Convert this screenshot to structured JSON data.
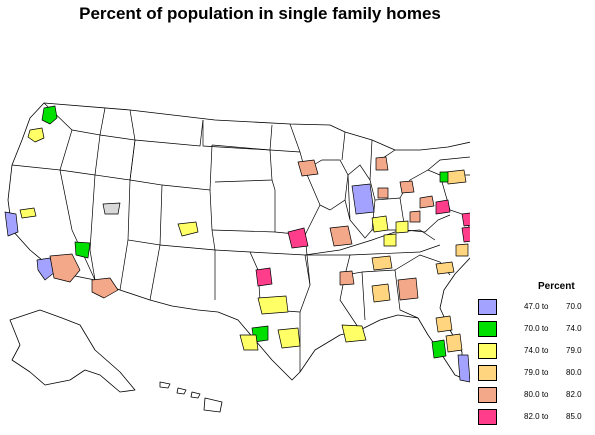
{
  "title": "Percent of population in single family homes",
  "legend": {
    "title": "Percent",
    "classes": [
      {
        "from": "47.0",
        "to": "70.0",
        "color": "#a3a3ff"
      },
      {
        "from": "70.0",
        "to": "74.0",
        "color": "#00e000"
      },
      {
        "from": "74.0",
        "to": "79.0",
        "color": "#ffff66"
      },
      {
        "from": "79.0",
        "to": "80.0",
        "color": "#ffd580"
      },
      {
        "from": "80.0",
        "to": "82.0",
        "color": "#f4a88a"
      },
      {
        "from": "82.0",
        "to": "85.0",
        "color": "#ff3d8b"
      }
    ],
    "word_to": "to"
  },
  "map": {
    "base": "United States states outline (incl. Alaska and Hawaii insets)",
    "metro_colors": {
      "seattle": "#00e000",
      "portland": "#ffff66",
      "sacramento": "#ffff66",
      "san-francisco": "#a3a3ff",
      "los-angeles": "#a3a3ff",
      "san-diego": "#a3a3ff",
      "las-vegas": "#00e000",
      "phoenix": "#f4a88a",
      "tucson": "#f4a88a",
      "salt-lake-city": "#d8d8d8",
      "denver": "#ffff66",
      "kansas-city": "#ff3d8b",
      "oklahoma-city": "#ff3d8b",
      "dallas": "#ffff66",
      "austin": "#00e000",
      "san-antonio": "#ffff66",
      "houston": "#ffff66",
      "new-orleans": "#ffff66",
      "minneapolis": "#f4a88a",
      "milwaukee": "#f4a88a",
      "chicago": "#a3a3ff",
      "st-louis": "#f4a88a",
      "detroit": "#f4a88a",
      "grand-rapids": "#f4a88a",
      "indianapolis": "#ffff66",
      "louisville": "#ffff66",
      "cincinnati": "#ffff66",
      "columbus": "#f4a88a",
      "cleveland": "#f4a88a",
      "pittsburgh": "#ff3d8b",
      "memphis": "#f4a88a",
      "nashville": "#ffd580",
      "birmingham": "#ffd580",
      "atlanta": "#f4a88a",
      "charlotte": "#ffd580",
      "raleigh": "#ffd580",
      "richmond": "#ffd580",
      "washington": "#ff3d8b",
      "baltimore": "#ff3d8b",
      "philadelphia": "#ff3d8b",
      "new-york": "#a3a3ff",
      "hartford": "#00e000",
      "providence": "#a3a3ff",
      "boston": "#a3a3ff",
      "buffalo": "#ffd580",
      "rochester": "#00e000",
      "jacksonville": "#ffd580",
      "orlando": "#ffd580",
      "tampa": "#00e000",
      "miami": "#a3a3ff"
    }
  }
}
